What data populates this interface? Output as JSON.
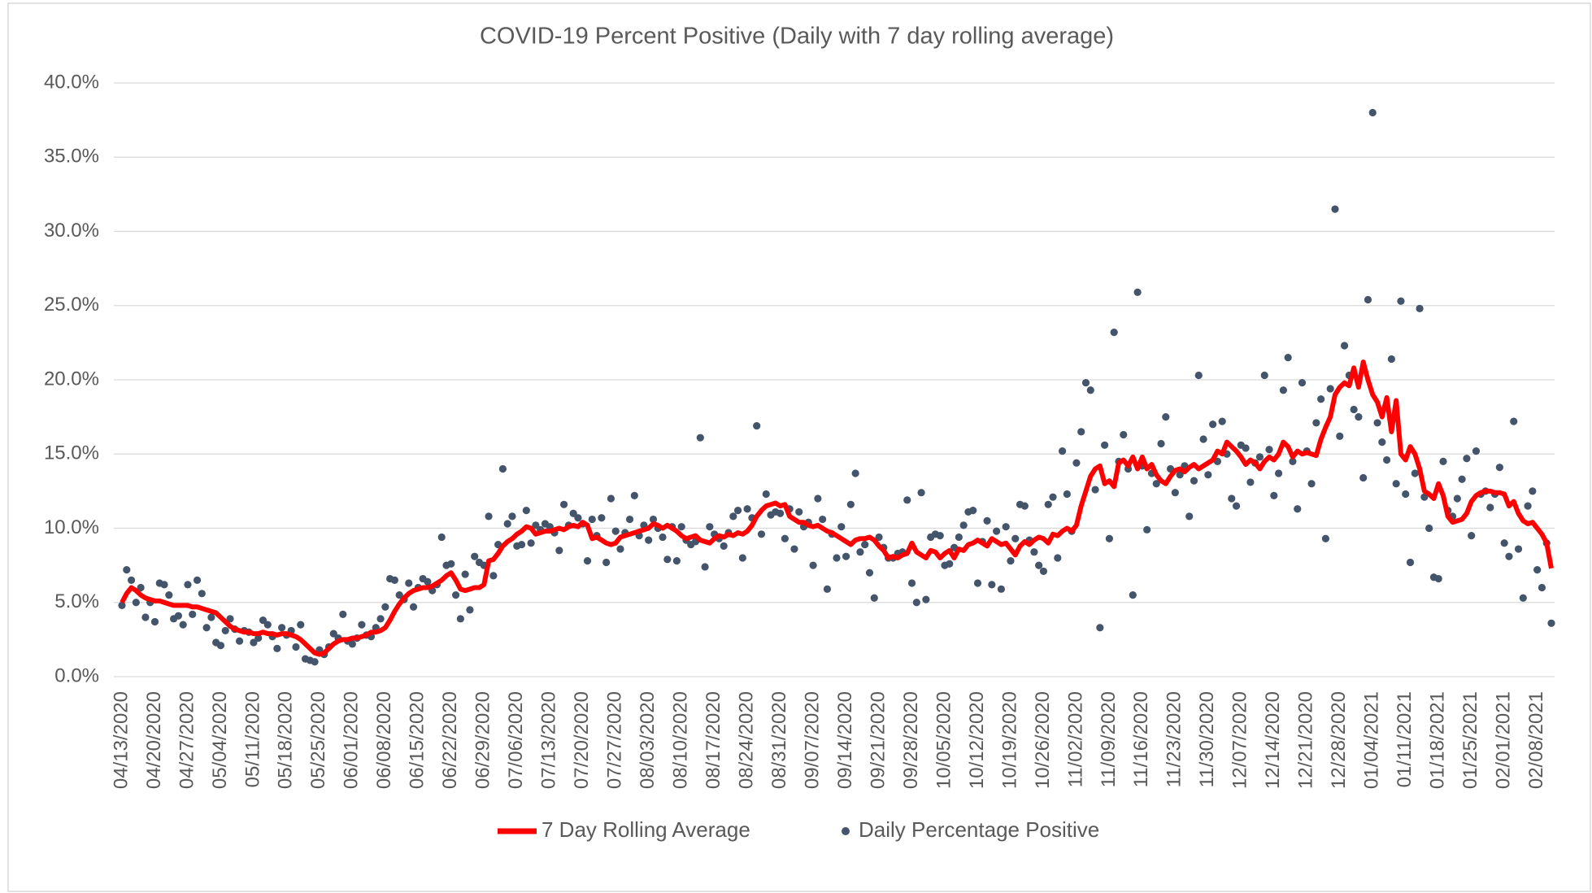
{
  "chart_data": {
    "type": "line",
    "title": "COVID-19 Percent Positive (Daily with 7 day rolling average)",
    "categories": [
      "04/13/2020",
      null,
      null,
      null,
      null,
      null,
      null,
      "04/20/2020",
      null,
      null,
      null,
      null,
      null,
      null,
      "04/27/2020",
      null,
      null,
      null,
      null,
      null,
      null,
      "05/04/2020",
      null,
      null,
      null,
      null,
      null,
      null,
      "05/11/2020",
      null,
      null,
      null,
      null,
      null,
      null,
      "05/18/2020",
      null,
      null,
      null,
      null,
      null,
      null,
      "05/25/2020",
      null,
      null,
      null,
      null,
      null,
      null,
      "06/01/2020",
      null,
      null,
      null,
      null,
      null,
      null,
      "06/08/2020",
      null,
      null,
      null,
      null,
      null,
      null,
      "06/15/2020",
      null,
      null,
      null,
      null,
      null,
      null,
      "06/22/2020",
      null,
      null,
      null,
      null,
      null,
      null,
      "06/29/2020",
      null,
      null,
      null,
      null,
      null,
      null,
      "07/06/2020",
      null,
      null,
      null,
      null,
      null,
      null,
      "07/13/2020",
      null,
      null,
      null,
      null,
      null,
      null,
      "07/20/2020",
      null,
      null,
      null,
      null,
      null,
      null,
      "07/27/2020",
      null,
      null,
      null,
      null,
      null,
      null,
      "08/03/2020",
      null,
      null,
      null,
      null,
      null,
      null,
      "08/10/2020",
      null,
      null,
      null,
      null,
      null,
      null,
      "08/17/2020",
      null,
      null,
      null,
      null,
      null,
      null,
      "08/24/2020",
      null,
      null,
      null,
      null,
      null,
      null,
      "08/31/2020",
      null,
      null,
      null,
      null,
      null,
      null,
      "09/07/2020",
      null,
      null,
      null,
      null,
      null,
      null,
      "09/14/2020",
      null,
      null,
      null,
      null,
      null,
      null,
      "09/21/2020",
      null,
      null,
      null,
      null,
      null,
      null,
      "09/28/2020",
      null,
      null,
      null,
      null,
      null,
      null,
      "10/05/2020",
      null,
      null,
      null,
      null,
      null,
      null,
      "10/12/2020",
      null,
      null,
      null,
      null,
      null,
      null,
      "10/19/2020",
      null,
      null,
      null,
      null,
      null,
      null,
      "10/26/2020",
      null,
      null,
      null,
      null,
      null,
      null,
      "11/02/2020",
      null,
      null,
      null,
      null,
      null,
      null,
      "11/09/2020",
      null,
      null,
      null,
      null,
      null,
      null,
      "11/16/2020",
      null,
      null,
      null,
      null,
      null,
      null,
      "11/23/2020",
      null,
      null,
      null,
      null,
      null,
      null,
      "11/30/2020",
      null,
      null,
      null,
      null,
      null,
      null,
      "12/07/2020",
      null,
      null,
      null,
      null,
      null,
      null,
      "12/14/2020",
      null,
      null,
      null,
      null,
      null,
      null,
      "12/21/2020",
      null,
      null,
      null,
      null,
      null,
      null,
      "12/28/2020",
      null,
      null,
      null,
      null,
      null,
      null,
      "01/04/2021",
      null,
      null,
      null,
      null,
      null,
      null,
      "01/11/2021",
      null,
      null,
      null,
      null,
      null,
      null,
      "01/18/2021",
      null,
      null,
      null,
      null,
      null,
      null,
      "01/25/2021",
      null,
      null,
      null,
      null,
      null,
      null,
      "02/01/2021",
      null,
      null,
      null,
      null,
      null,
      null,
      "02/08/2021",
      null,
      null,
      null
    ],
    "series": [
      {
        "name": "7 Day Rolling Average",
        "type": "line",
        "color": "#ff0000",
        "values": [
          5.0,
          5.6,
          6.0,
          5.8,
          5.5,
          5.3,
          5.2,
          5.1,
          5.1,
          5.0,
          4.9,
          4.8,
          4.8,
          4.8,
          4.8,
          4.7,
          4.7,
          4.6,
          4.5,
          4.4,
          4.3,
          4.0,
          3.7,
          3.4,
          3.2,
          3.1,
          3.0,
          3.0,
          2.9,
          2.9,
          3.0,
          2.9,
          2.9,
          2.8,
          2.9,
          2.9,
          2.8,
          2.7,
          2.5,
          2.2,
          1.9,
          1.6,
          1.5,
          1.6,
          1.9,
          2.2,
          2.4,
          2.5,
          2.5,
          2.6,
          2.6,
          2.7,
          2.8,
          3.0,
          3.0,
          3.1,
          3.3,
          3.8,
          4.4,
          4.9,
          5.3,
          5.6,
          5.8,
          5.9,
          6.0,
          6.0,
          6.1,
          6.3,
          6.5,
          6.8,
          7.0,
          6.5,
          5.9,
          5.8,
          5.9,
          6.0,
          6.0,
          6.2,
          7.8,
          7.9,
          8.3,
          8.8,
          9.1,
          9.3,
          9.6,
          9.8,
          10.1,
          10.0,
          9.6,
          9.7,
          9.8,
          9.8,
          9.9,
          10.0,
          9.9,
          10.1,
          10.2,
          10.1,
          10.4,
          10.2,
          9.3,
          9.4,
          9.2,
          9.0,
          8.9,
          9.0,
          9.4,
          9.5,
          9.6,
          9.7,
          9.8,
          9.9,
          10.0,
          10.3,
          10.2,
          10.0,
          10.2,
          10.0,
          9.8,
          9.5,
          9.3,
          9.4,
          9.5,
          9.2,
          9.1,
          9.0,
          9.3,
          9.5,
          9.4,
          9.6,
          9.5,
          9.7,
          9.6,
          9.8,
          10.2,
          10.8,
          11.2,
          11.5,
          11.6,
          11.7,
          11.5,
          11.6,
          10.8,
          10.6,
          10.4,
          10.4,
          10.2,
          10.1,
          10.2,
          10.0,
          9.8,
          9.7,
          9.5,
          9.3,
          9.1,
          8.9,
          9.2,
          9.3,
          9.3,
          9.4,
          9.2,
          8.8,
          8.5,
          8.0,
          8.1,
          8.0,
          8.2,
          8.3,
          9.0,
          8.4,
          8.2,
          8.0,
          8.5,
          8.4,
          8.0,
          8.3,
          8.5,
          8.0,
          8.6,
          8.5,
          8.9,
          9.0,
          9.2,
          9.0,
          8.8,
          9.3,
          9.1,
          8.9,
          9.0,
          8.6,
          8.2,
          8.8,
          9.1,
          8.9,
          9.2,
          9.4,
          9.3,
          9.0,
          9.6,
          9.5,
          9.8,
          10.0,
          9.8,
          10.2,
          11.5,
          12.5,
          13.5,
          14.0,
          14.2,
          13.0,
          13.2,
          12.8,
          14.4,
          14.6,
          14.2,
          14.8,
          14.0,
          14.8,
          14.0,
          14.3,
          13.6,
          13.2,
          13.0,
          13.5,
          13.9,
          14.0,
          13.8,
          14.1,
          14.3,
          14.0,
          14.2,
          14.4,
          14.6,
          15.2,
          15.0,
          15.8,
          15.5,
          15.2,
          14.8,
          14.3,
          14.6,
          14.4,
          14.0,
          14.5,
          14.8,
          14.6,
          15.0,
          15.8,
          15.5,
          14.8,
          15.2,
          15.0,
          15.1,
          15.0,
          14.9,
          16.0,
          16.8,
          17.5,
          19.0,
          19.5,
          19.8,
          19.6,
          20.8,
          19.5,
          21.2,
          20.0,
          19.0,
          18.5,
          17.5,
          18.8,
          16.5,
          18.6,
          15.0,
          14.6,
          15.5,
          15.0,
          14.0,
          12.5,
          12.3,
          12.0,
          13.0,
          12.2,
          10.8,
          10.4,
          10.5,
          10.6,
          11.0,
          11.8,
          12.2,
          12.4,
          12.5,
          12.5,
          12.4,
          12.4,
          12.3,
          11.5,
          11.8,
          11.0,
          10.5,
          10.3,
          10.4,
          10.0,
          9.6,
          9.0,
          7.3
        ]
      },
      {
        "name": "Daily Percentage Positive",
        "type": "scatter",
        "color": "#44546a",
        "values": [
          4.8,
          7.2,
          6.5,
          5.0,
          6.0,
          4.0,
          5.0,
          3.7,
          6.3,
          6.2,
          5.5,
          3.9,
          4.1,
          3.5,
          6.2,
          4.2,
          6.5,
          5.6,
          3.3,
          4.0,
          2.3,
          2.1,
          3.1,
          3.9,
          3.2,
          2.4,
          3.1,
          3.0,
          2.3,
          2.6,
          3.8,
          3.5,
          2.7,
          1.9,
          3.3,
          2.8,
          3.1,
          2.0,
          3.5,
          1.2,
          1.1,
          1.0,
          1.8,
          1.5,
          2.0,
          2.9,
          2.6,
          4.2,
          2.4,
          2.2,
          2.6,
          3.5,
          2.8,
          2.7,
          3.3,
          3.9,
          4.7,
          6.6,
          6.5,
          5.5,
          5.2,
          6.3,
          4.7,
          6.0,
          6.6,
          6.4,
          5.8,
          6.2,
          9.4,
          7.5,
          7.6,
          5.5,
          3.9,
          6.9,
          4.5,
          8.1,
          7.7,
          7.5,
          10.8,
          6.8,
          8.9,
          14.0,
          10.3,
          10.8,
          8.8,
          8.9,
          11.2,
          9.0,
          10.2,
          9.9,
          10.3,
          10.1,
          9.7,
          8.5,
          11.6,
          10.2,
          11.0,
          10.7,
          10.3,
          7.8,
          10.6,
          9.5,
          10.7,
          7.7,
          12.0,
          9.8,
          8.6,
          9.7,
          10.6,
          12.2,
          9.5,
          10.2,
          9.2,
          10.6,
          10.0,
          9.4,
          7.9,
          10.1,
          7.8,
          10.1,
          9.2,
          8.9,
          9.1,
          16.1,
          7.4,
          10.1,
          9.6,
          9.3,
          8.8,
          9.7,
          10.8,
          11.2,
          8.0,
          11.3,
          10.7,
          16.9,
          9.6,
          12.3,
          10.9,
          11.1,
          11.0,
          9.3,
          11.3,
          8.6,
          11.1,
          10.1,
          10.4,
          7.5,
          12.0,
          10.6,
          5.9,
          9.6,
          8.0,
          10.1,
          8.1,
          11.6,
          13.7,
          8.4,
          8.9,
          7.0,
          5.3,
          9.4,
          8.7,
          8.0,
          8.0,
          8.3,
          8.4,
          11.9,
          6.3,
          5.0,
          12.4,
          5.2,
          9.4,
          9.6,
          9.5,
          7.5,
          7.6,
          8.7,
          9.4,
          10.2,
          11.1,
          11.2,
          6.3,
          9.1,
          10.5,
          6.2,
          9.8,
          5.9,
          10.1,
          7.8,
          9.3,
          11.6,
          11.5,
          9.2,
          8.4,
          7.5,
          7.1,
          11.6,
          12.1,
          8.0,
          15.2,
          12.3,
          9.8,
          14.4,
          16.5,
          19.8,
          19.3,
          12.6,
          3.3,
          15.6,
          9.3,
          23.2,
          14.5,
          16.3,
          14.0,
          5.5,
          25.9,
          14.2,
          9.9,
          13.7,
          13.0,
          15.7,
          17.5,
          14.0,
          12.4,
          13.6,
          14.2,
          10.8,
          13.2,
          20.3,
          16.0,
          13.6,
          17.0,
          14.5,
          17.2,
          15.0,
          12.0,
          11.5,
          15.6,
          15.4,
          13.1,
          14.4,
          14.8,
          20.3,
          15.3,
          12.2,
          13.7,
          19.3,
          21.5,
          14.5,
          11.3,
          19.8,
          15.2,
          13.0,
          17.1,
          18.7,
          9.3,
          19.4,
          31.5,
          16.2,
          22.3,
          20.3,
          18.0,
          17.5,
          13.4,
          25.4,
          38.0,
          17.1,
          15.8,
          14.6,
          21.4,
          13.0,
          25.3,
          12.3,
          7.7,
          13.7,
          24.8,
          12.1,
          10.0,
          6.7,
          6.6,
          14.5,
          11.2,
          10.8,
          12.0,
          13.3,
          14.7,
          9.5,
          15.2,
          12.3,
          12.5,
          11.4,
          12.3,
          14.1,
          9.0,
          8.1,
          17.2,
          8.6,
          5.3,
          11.5,
          12.5,
          7.2,
          6.0,
          9.0,
          3.6
        ]
      }
    ],
    "ylim": [
      0,
      40
    ],
    "yticks": [
      {
        "value": 0,
        "label": "0.0%"
      },
      {
        "value": 5,
        "label": "5.0%"
      },
      {
        "value": 10,
        "label": "10.0%"
      },
      {
        "value": 15,
        "label": "15.0%"
      },
      {
        "value": 20,
        "label": "20.0%"
      },
      {
        "value": 25,
        "label": "25.0%"
      },
      {
        "value": 30,
        "label": "30.0%"
      },
      {
        "value": 35,
        "label": "35.0%"
      },
      {
        "value": 40,
        "label": "40.0%"
      }
    ],
    "grid": true,
    "legend": "bottom"
  }
}
